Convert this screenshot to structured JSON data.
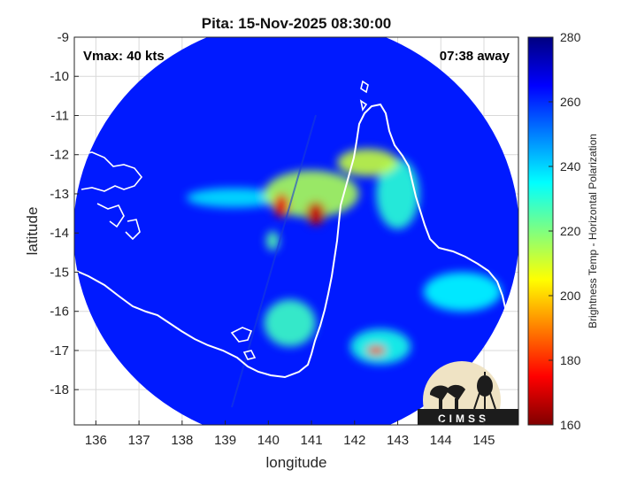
{
  "chart_data": {
    "type": "heatmap",
    "title": "Pita: 15-Nov-2025 08:30:00",
    "xlabel": "longitude",
    "ylabel": "latitude",
    "xlim": [
      135.5,
      145.8
    ],
    "ylim": [
      -18.9,
      -9
    ],
    "xticks": [
      136,
      137,
      138,
      139,
      140,
      141,
      142,
      143,
      144,
      145
    ],
    "yticks": [
      -9,
      -10,
      -11,
      -12,
      -13,
      -14,
      -15,
      -16,
      -17,
      -18
    ],
    "grid": true,
    "annotations": {
      "vmax": "Vmax: 40 kts",
      "time_away": "07:38 away"
    },
    "colorbar": {
      "label": "Brightness Temp - Horizontal Polarization",
      "min": 160,
      "max": 280,
      "ticks": [
        160,
        180,
        200,
        220,
        240,
        260,
        280
      ]
    },
    "features": [
      {
        "lon": 140.3,
        "lat": -13.3,
        "value": 172,
        "rx": 0.18,
        "ry": 0.3
      },
      {
        "lon": 141.1,
        "lat": -13.5,
        "value": 168,
        "rx": 0.22,
        "ry": 0.3
      },
      {
        "lon": 142.5,
        "lat": -17.0,
        "value": 180,
        "rx": 0.22,
        "ry": 0.12
      },
      {
        "lon": 141.0,
        "lat": -13.0,
        "value": 215,
        "rx": 1.1,
        "ry": 0.6
      },
      {
        "lon": 142.3,
        "lat": -12.2,
        "value": 212,
        "rx": 0.7,
        "ry": 0.35
      },
      {
        "lon": 143.0,
        "lat": -13.0,
        "value": 230,
        "rx": 0.5,
        "ry": 0.9
      },
      {
        "lon": 140.5,
        "lat": -16.3,
        "value": 228,
        "rx": 0.6,
        "ry": 0.6
      },
      {
        "lon": 139.2,
        "lat": -13.1,
        "value": 238,
        "rx": 1.1,
        "ry": 0.25
      },
      {
        "lon": 144.5,
        "lat": -15.5,
        "value": 235,
        "rx": 0.9,
        "ry": 0.5
      },
      {
        "lon": 142.6,
        "lat": -16.9,
        "value": 232,
        "rx": 0.7,
        "ry": 0.45
      },
      {
        "lon": 140.1,
        "lat": -14.2,
        "value": 225,
        "rx": 0.15,
        "ry": 0.25
      }
    ],
    "background_value": 262
  },
  "logo": {
    "text": "CIMSS"
  }
}
